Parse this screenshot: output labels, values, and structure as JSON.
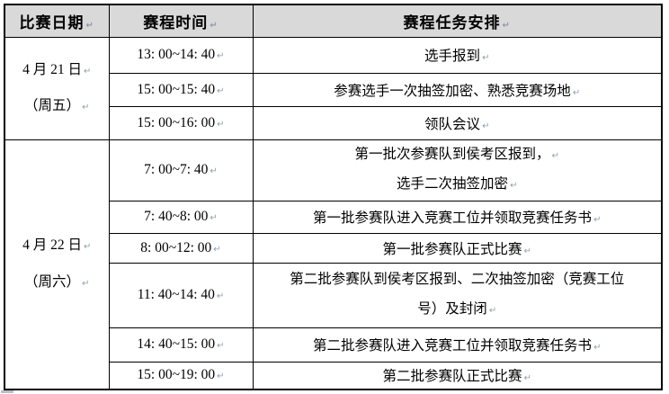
{
  "table": {
    "pilcrow": "↵",
    "headers": [
      "比赛日期",
      "赛程时间",
      "赛程任务安排"
    ],
    "sections": [
      {
        "date_lines": [
          "4 月 21 日",
          "（周五）"
        ],
        "rows": [
          {
            "time": "13: 00~14: 40",
            "task_lines": [
              "选手报到"
            ]
          },
          {
            "time": "15: 00~15: 40",
            "task_lines": [
              "参赛选手一次抽签加密、熟悉竞赛场地"
            ]
          },
          {
            "time": "15: 00~16: 00",
            "task_lines": [
              "领队会议"
            ]
          }
        ]
      },
      {
        "date_lines": [
          "4 月 22 日",
          "（周六）"
        ],
        "rows": [
          {
            "time": "7: 00~7: 40",
            "task_lines": [
              "第一批次参赛队到侯考区报到，",
              "选手二次抽签加密"
            ]
          },
          {
            "time": "7: 40~8: 00",
            "task_lines": [
              "第一批参赛队进入竞赛工位并领取竞赛任务书"
            ]
          },
          {
            "time": "8: 00~12: 00",
            "task_lines": [
              "第一批参赛队正式比赛"
            ]
          },
          {
            "time": "11: 40~14: 40",
            "task_lines": [
              "第二批参赛队到侯考区报到、二次抽签加密（竞赛工位",
              "号）及封闭"
            ]
          },
          {
            "time": "14: 40~15: 00",
            "task_lines": [
              "第二批参赛队进入竞赛工位并领取竞赛任务书"
            ]
          },
          {
            "time": "15: 00~19: 00",
            "task_lines": [
              "第二批参赛队正式比赛"
            ]
          }
        ]
      }
    ],
    "colors": {
      "header_bg": "#d9d9d9",
      "border": "#000000",
      "text": "#000000",
      "formatting_mark": "#8c9cb5"
    }
  }
}
